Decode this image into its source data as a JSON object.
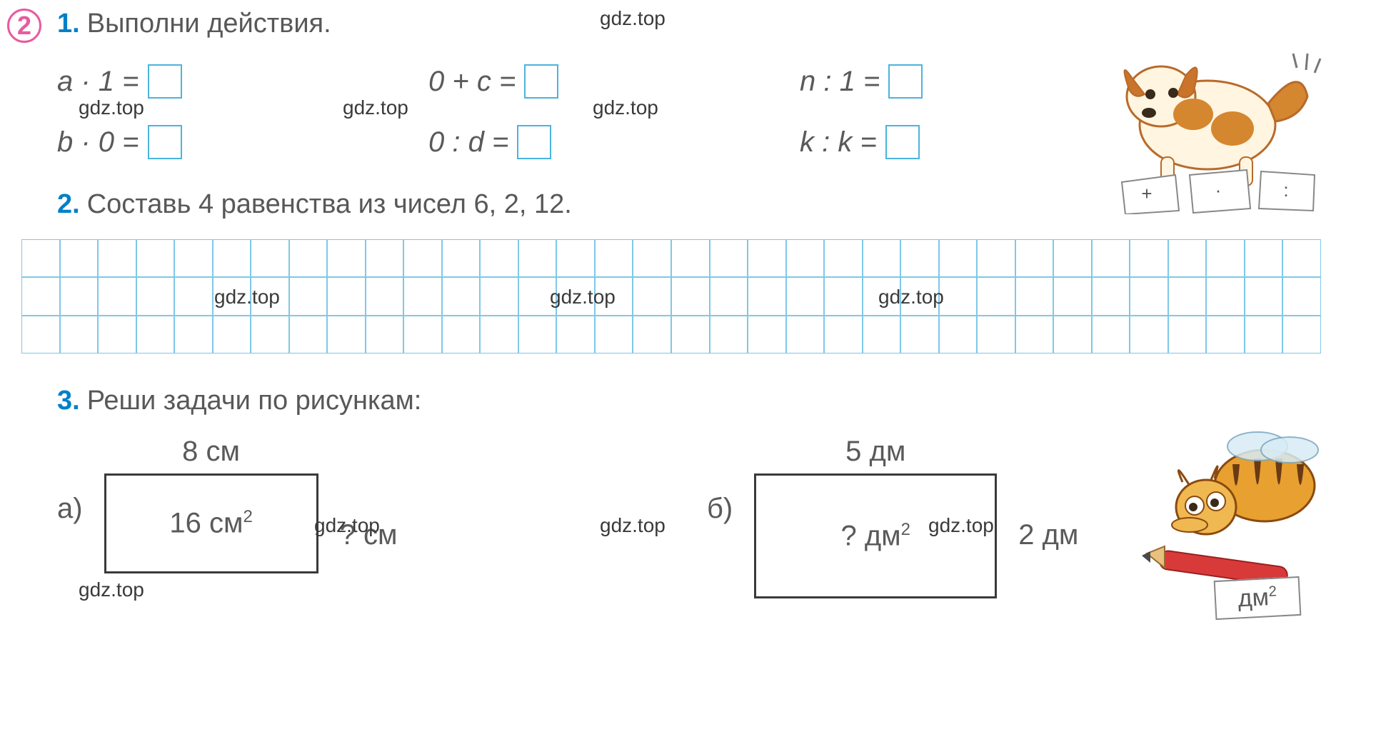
{
  "watermark": "gdz.top",
  "circle_number": "2",
  "task1": {
    "num": "1.",
    "text": "Выполни действия.",
    "row1": [
      {
        "lhs": "a · 1 ="
      },
      {
        "lhs": "0 + c ="
      },
      {
        "lhs": "n : 1 ="
      }
    ],
    "row2": [
      {
        "lhs": "b · 0 ="
      },
      {
        "lhs": "0 : d ="
      },
      {
        "lhs": "k : k ="
      }
    ]
  },
  "task2": {
    "num": "2.",
    "text": "Составь 4 равенства из чисел 6, 2, 12."
  },
  "task3": {
    "num": "3.",
    "text": "Реши задачи по рисункам:",
    "a": {
      "letter": "а)",
      "width_label": "8 см",
      "area_label": "16 см²",
      "side_label": "? см"
    },
    "b": {
      "letter": "б)",
      "width_label": "5 дм",
      "area_label": "? дм²",
      "side_label": "2 дм"
    }
  },
  "dm_card": "дм²",
  "colors": {
    "circle_border": "#e85aa0",
    "task_num": "#0080c8",
    "body_text": "#585858",
    "box_border": "#4ab4dd",
    "grid_border": "#7fc8e8",
    "rect_border": "#3a3a3a"
  }
}
